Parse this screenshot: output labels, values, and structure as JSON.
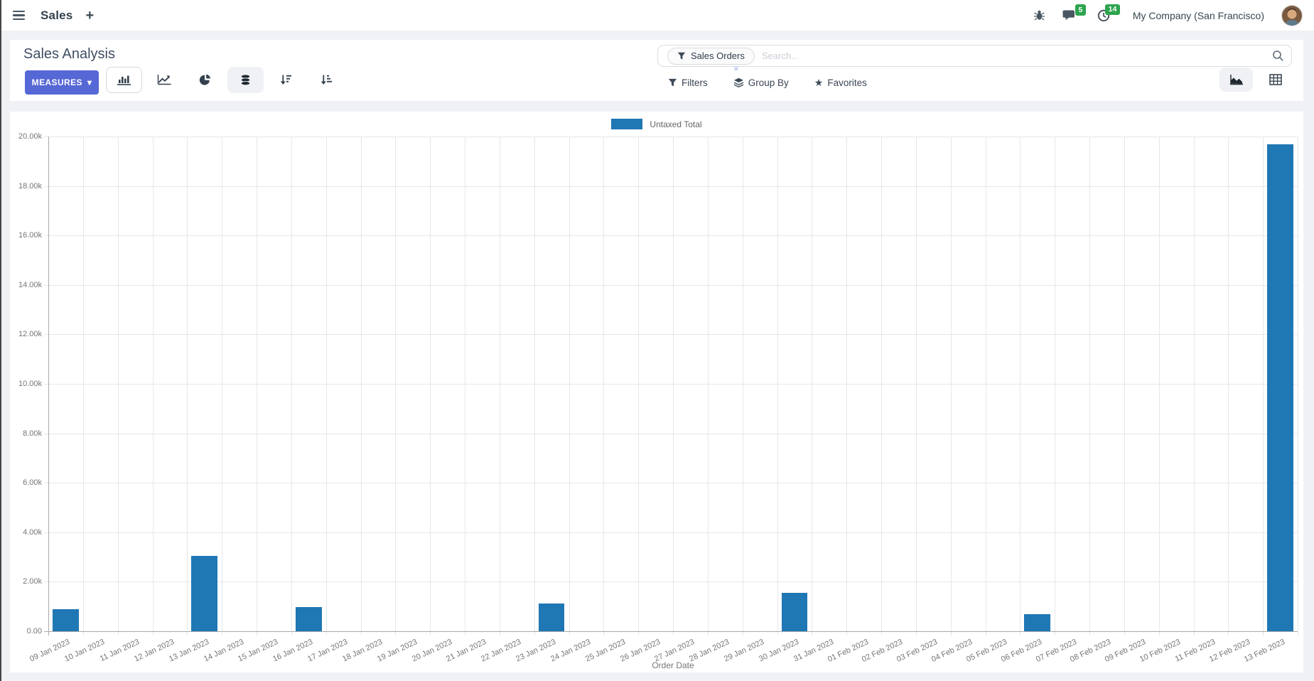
{
  "navbar": {
    "app_name": "Sales",
    "messages_badge": "5",
    "activities_badge": "14",
    "company": "My Company (San Francisco)"
  },
  "control_panel": {
    "title": "Sales Analysis",
    "measures_label": "MEASURES",
    "search": {
      "facet": "Sales Orders",
      "placeholder": "Search..."
    },
    "filters_label": "Filters",
    "group_by_label": "Group By",
    "favorites_label": "Favorites"
  },
  "icons": {
    "plus": "+",
    "chevron_down": "▾",
    "star": "★",
    "close": "×"
  },
  "chart_data": {
    "type": "bar",
    "title": "",
    "xlabel": "Order Date",
    "ylabel": "",
    "ylim": [
      0,
      20000
    ],
    "ytick_step": 2000,
    "ytick_labels": [
      "0.00",
      "2.00k",
      "4.00k",
      "6.00k",
      "8.00k",
      "10.00k",
      "12.00k",
      "14.00k",
      "16.00k",
      "18.00k",
      "20.00k"
    ],
    "grid": true,
    "legend_position": "top",
    "series_color": "#1f77b4",
    "categories": [
      "09 Jan 2023",
      "10 Jan 2023",
      "11 Jan 2023",
      "12 Jan 2023",
      "13 Jan 2023",
      "14 Jan 2023",
      "15 Jan 2023",
      "16 Jan 2023",
      "17 Jan 2023",
      "18 Jan 2023",
      "19 Jan 2023",
      "20 Jan 2023",
      "21 Jan 2023",
      "22 Jan 2023",
      "23 Jan 2023",
      "24 Jan 2023",
      "25 Jan 2023",
      "26 Jan 2023",
      "27 Jan 2023",
      "28 Jan 2023",
      "29 Jan 2023",
      "30 Jan 2023",
      "31 Jan 2023",
      "01 Feb 2023",
      "02 Feb 2023",
      "03 Feb 2023",
      "04 Feb 2023",
      "05 Feb 2023",
      "06 Feb 2023",
      "07 Feb 2023",
      "08 Feb 2023",
      "09 Feb 2023",
      "10 Feb 2023",
      "11 Feb 2023",
      "12 Feb 2023",
      "13 Feb 2023"
    ],
    "series": [
      {
        "name": "Untaxed Total",
        "values": [
          880,
          0,
          0,
          0,
          3040,
          0,
          0,
          980,
          0,
          0,
          0,
          0,
          0,
          0,
          1120,
          0,
          0,
          0,
          0,
          0,
          0,
          1560,
          0,
          0,
          0,
          0,
          0,
          0,
          680,
          0,
          0,
          0,
          0,
          0,
          0,
          19680
        ]
      }
    ]
  }
}
